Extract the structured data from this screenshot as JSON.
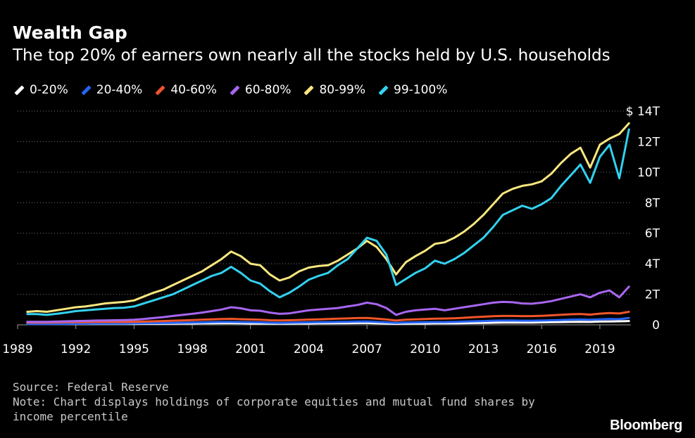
{
  "chart_data": {
    "type": "line",
    "title": "Wealth Gap",
    "subtitle": "The top 20% of earners own nearly all the stocks held by U.S. households",
    "xlabel": "",
    "ylabel": "",
    "x": [
      1989.5,
      1990,
      1990.5,
      1991,
      1991.5,
      1992,
      1992.5,
      1993,
      1993.5,
      1994,
      1994.5,
      1995,
      1995.5,
      1996,
      1996.5,
      1997,
      1997.5,
      1998,
      1998.5,
      1999,
      1999.5,
      2000,
      2000.5,
      2001,
      2001.5,
      2002,
      2002.5,
      2003,
      2003.5,
      2004,
      2004.5,
      2005,
      2005.5,
      2006,
      2006.5,
      2007,
      2007.5,
      2008,
      2008.5,
      2009,
      2009.5,
      2010,
      2010.5,
      2011,
      2011.5,
      2012,
      2012.5,
      2013,
      2013.5,
      2014,
      2014.5,
      2015,
      2015.5,
      2016,
      2016.5,
      2017,
      2017.5,
      2018,
      2018.5,
      2019,
      2019.5,
      2020,
      2020.5
    ],
    "series": [
      {
        "name": "0-20%",
        "color": "#ffffff",
        "values": [
          0.05,
          0.05,
          0.05,
          0.05,
          0.05,
          0.05,
          0.05,
          0.06,
          0.06,
          0.06,
          0.06,
          0.06,
          0.07,
          0.07,
          0.08,
          0.08,
          0.09,
          0.09,
          0.1,
          0.1,
          0.11,
          0.11,
          0.1,
          0.09,
          0.09,
          0.08,
          0.08,
          0.08,
          0.09,
          0.09,
          0.1,
          0.1,
          0.11,
          0.11,
          0.12,
          0.12,
          0.1,
          0.09,
          0.07,
          0.08,
          0.09,
          0.09,
          0.1,
          0.1,
          0.1,
          0.11,
          0.12,
          0.13,
          0.14,
          0.15,
          0.15,
          0.15,
          0.15,
          0.16,
          0.17,
          0.18,
          0.19,
          0.2,
          0.19,
          0.21,
          0.22,
          0.23,
          0.25
        ]
      },
      {
        "name": "20-40%",
        "color": "#2563f4",
        "values": [
          0.05,
          0.05,
          0.05,
          0.06,
          0.06,
          0.07,
          0.07,
          0.08,
          0.08,
          0.08,
          0.08,
          0.09,
          0.1,
          0.11,
          0.12,
          0.13,
          0.14,
          0.15,
          0.16,
          0.18,
          0.19,
          0.19,
          0.18,
          0.17,
          0.16,
          0.14,
          0.13,
          0.14,
          0.15,
          0.16,
          0.17,
          0.18,
          0.19,
          0.2,
          0.21,
          0.22,
          0.19,
          0.16,
          0.13,
          0.15,
          0.16,
          0.17,
          0.18,
          0.18,
          0.19,
          0.21,
          0.23,
          0.25,
          0.27,
          0.28,
          0.28,
          0.27,
          0.27,
          0.28,
          0.3,
          0.32,
          0.34,
          0.35,
          0.33,
          0.36,
          0.38,
          0.37,
          0.45
        ]
      },
      {
        "name": "40-60%",
        "color": "#f0552a",
        "values": [
          0.15,
          0.15,
          0.15,
          0.16,
          0.17,
          0.18,
          0.18,
          0.19,
          0.19,
          0.19,
          0.19,
          0.2,
          0.21,
          0.23,
          0.25,
          0.27,
          0.29,
          0.31,
          0.33,
          0.36,
          0.38,
          0.39,
          0.37,
          0.35,
          0.33,
          0.3,
          0.29,
          0.3,
          0.32,
          0.34,
          0.36,
          0.38,
          0.4,
          0.42,
          0.44,
          0.45,
          0.4,
          0.35,
          0.28,
          0.33,
          0.36,
          0.38,
          0.4,
          0.41,
          0.43,
          0.46,
          0.5,
          0.53,
          0.56,
          0.58,
          0.58,
          0.57,
          0.57,
          0.59,
          0.62,
          0.66,
          0.69,
          0.71,
          0.67,
          0.73,
          0.77,
          0.74,
          0.85
        ]
      },
      {
        "name": "60-80%",
        "color": "#a766f0",
        "values": [
          0.2,
          0.2,
          0.2,
          0.21,
          0.23,
          0.25,
          0.26,
          0.28,
          0.29,
          0.3,
          0.31,
          0.33,
          0.38,
          0.44,
          0.5,
          0.58,
          0.65,
          0.72,
          0.8,
          0.9,
          1.0,
          1.15,
          1.08,
          0.95,
          0.92,
          0.8,
          0.72,
          0.75,
          0.85,
          0.95,
          1.0,
          1.05,
          1.1,
          1.2,
          1.3,
          1.45,
          1.35,
          1.1,
          0.65,
          0.85,
          0.95,
          1.0,
          1.05,
          0.95,
          1.05,
          1.15,
          1.25,
          1.35,
          1.45,
          1.5,
          1.48,
          1.4,
          1.38,
          1.45,
          1.55,
          1.7,
          1.85,
          2.0,
          1.8,
          2.1,
          2.25,
          1.8,
          2.5
        ]
      },
      {
        "name": "80-99%",
        "color": "#fae77f",
        "values": [
          0.85,
          0.9,
          0.85,
          0.95,
          1.05,
          1.15,
          1.2,
          1.3,
          1.4,
          1.45,
          1.5,
          1.6,
          1.85,
          2.1,
          2.3,
          2.6,
          2.9,
          3.2,
          3.5,
          3.9,
          4.3,
          4.8,
          4.5,
          4.0,
          3.9,
          3.3,
          2.9,
          3.1,
          3.5,
          3.75,
          3.85,
          3.9,
          4.2,
          4.6,
          5.0,
          5.5,
          5.1,
          4.3,
          3.3,
          4.1,
          4.5,
          4.85,
          5.3,
          5.4,
          5.7,
          6.1,
          6.6,
          7.2,
          7.9,
          8.6,
          8.9,
          9.1,
          9.2,
          9.4,
          9.9,
          10.6,
          11.2,
          11.6,
          10.3,
          11.8,
          12.2,
          12.5,
          13.2
        ]
      },
      {
        "name": "99-100%",
        "color": "#33d1f0",
        "values": [
          0.7,
          0.7,
          0.65,
          0.72,
          0.8,
          0.9,
          0.95,
          1.0,
          1.05,
          1.1,
          1.12,
          1.2,
          1.4,
          1.6,
          1.8,
          2.0,
          2.3,
          2.6,
          2.9,
          3.2,
          3.4,
          3.8,
          3.4,
          2.9,
          2.7,
          2.2,
          1.8,
          2.1,
          2.5,
          2.95,
          3.2,
          3.4,
          3.9,
          4.3,
          5.0,
          5.7,
          5.5,
          4.6,
          2.6,
          3.0,
          3.4,
          3.7,
          4.2,
          4.0,
          4.3,
          4.7,
          5.2,
          5.7,
          6.4,
          7.2,
          7.5,
          7.8,
          7.6,
          7.9,
          8.3,
          9.1,
          9.8,
          10.5,
          9.3,
          11.0,
          11.8,
          9.6,
          12.8
        ]
      }
    ],
    "x_ticks": [
      1989,
      1992,
      1995,
      1998,
      2001,
      2004,
      2007,
      2010,
      2013,
      2016,
      2019
    ],
    "y_ticks": [
      0,
      2,
      4,
      6,
      8,
      10,
      12,
      14
    ],
    "y_tick_labels": [
      "0",
      "2T",
      "4T",
      "6T",
      "8T",
      "10T",
      "12T",
      "$ 14T"
    ],
    "xlim": [
      1989,
      2020.6
    ],
    "ylim": [
      0,
      14
    ],
    "grid": "horizontal-dotted",
    "legend_position": "top-left",
    "source": "Source: Federal Reserve",
    "note_line1": "Note: Chart displays holdings of corporate equities and mutual fund shares by",
    "note_line2": "income percentile",
    "brand": "Bloomberg"
  }
}
